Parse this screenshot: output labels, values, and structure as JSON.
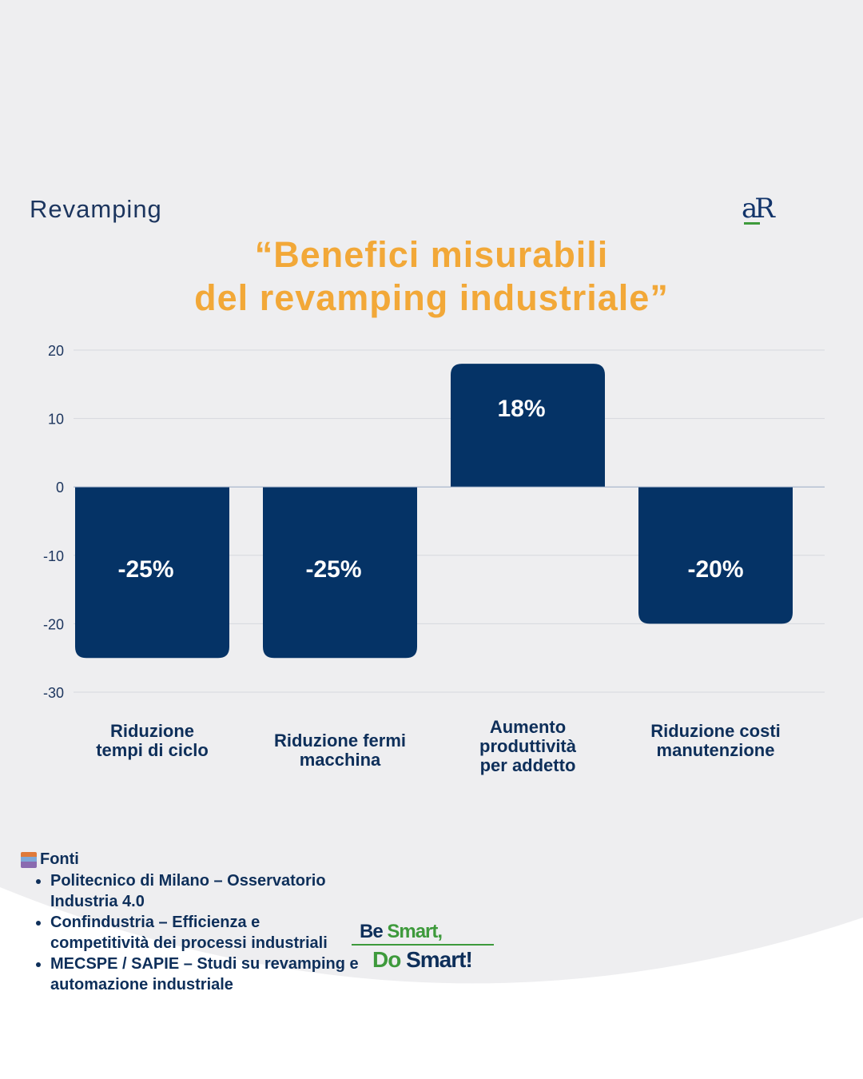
{
  "header": {
    "kicker": "Revamping",
    "logo": "aR",
    "title_line1": "“Benefici misurabili",
    "title_line2": "del revamping industriale”"
  },
  "chart_data": {
    "type": "bar",
    "categories": [
      "Riduzione tempi di ciclo",
      "Riduzione fermi macchina",
      "Aumento produttività per addetto",
      "Riduzione costi manutenzione"
    ],
    "category_lines": [
      [
        "Riduzione",
        "tempi di ciclo"
      ],
      [
        "Riduzione fermi",
        "macchina"
      ],
      [
        "Aumento",
        "produttività",
        "per addetto"
      ],
      [
        "Riduzione costi",
        "manutenzione"
      ]
    ],
    "values": [
      -25,
      -25,
      18,
      -20
    ],
    "data_labels": [
      "-25%",
      "-25%",
      "18%",
      "-20%"
    ],
    "yticks": [
      20,
      10,
      0,
      -10,
      -20,
      -30
    ],
    "ylim": [
      -30,
      20
    ],
    "grid": true,
    "bar_color": "#053366"
  },
  "sources": {
    "heading": "Fonti",
    "items": [
      "Politecnico di Milano – Osservatorio Industria 4.0",
      "Confindustria – Efficienza e competitività dei processi industriali",
      "MECSPE / SAPIE – Studi su revamping e automazione industriale"
    ]
  },
  "slogan": {
    "be": "Be",
    "smart1": "Smart,",
    "do": "Do",
    "smart2": "Smart!"
  }
}
